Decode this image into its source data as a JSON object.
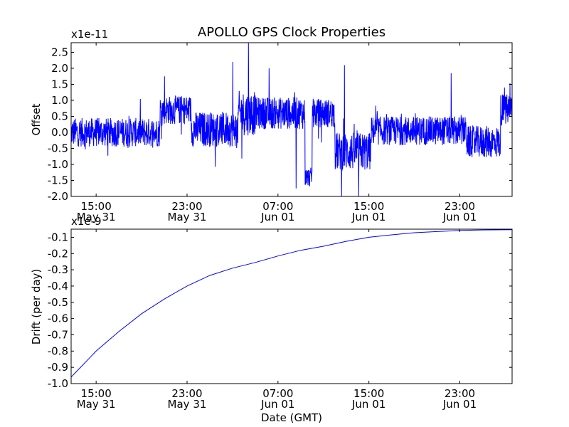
{
  "title": "APOLLO GPS Clock Properties",
  "chart_data": [
    {
      "type": "line",
      "name": "offset",
      "ylabel": "Offset",
      "scale_label": "x1e-11",
      "scale": 1e-11,
      "ylim": [
        -2.0,
        2.8
      ],
      "yticks": [
        -2.0,
        -1.5,
        -1.0,
        -0.5,
        0.0,
        0.5,
        1.0,
        1.5,
        2.0,
        2.5
      ],
      "ytick_labels": [
        "-2.0",
        "-1.5",
        "-1.0",
        "-0.5",
        "0.0",
        "0.5",
        "1.0",
        "1.5",
        "2.0",
        "2.5"
      ],
      "xlim_hours": [
        -2.2,
        36.6
      ],
      "xticks_hours": [
        0,
        8,
        16,
        24,
        32
      ],
      "xtick_labels": [
        [
          "15:00",
          "May 31"
        ],
        [
          "23:00",
          "May 31"
        ],
        [
          "07:00",
          "Jun 01"
        ],
        [
          "15:00",
          "Jun 01"
        ],
        [
          "23:00",
          "Jun 01"
        ]
      ],
      "series": [
        {
          "name": "clock offset",
          "color": "#0000ff",
          "segments": [
            {
              "from_hour": -2.2,
              "to_hour": 5.6,
              "mean": 0.0,
              "noise": 0.45,
              "spikes": []
            },
            {
              "from_hour": 5.6,
              "to_hour": 8.4,
              "mean": 0.7,
              "noise": 0.45,
              "spikes": [
                {
                  "hour": 6.0,
                  "value": 1.75
                }
              ]
            },
            {
              "from_hour": 8.4,
              "to_hour": 12.5,
              "mean": 0.1,
              "noise": 0.55,
              "spikes": [
                {
                  "hour": 12.0,
                  "value": 2.2
                }
              ]
            },
            {
              "from_hour": 12.5,
              "to_hour": 14.0,
              "mean": 0.6,
              "noise": 0.7,
              "spikes": [
                {
                  "hour": 13.4,
                  "value": 2.8
                }
              ]
            },
            {
              "from_hour": 14.0,
              "to_hour": 18.4,
              "mean": 0.6,
              "noise": 0.5,
              "spikes": [
                {
                  "hour": 15.2,
                  "value": 2.0
                },
                {
                  "hour": 17.6,
                  "value": -1.75
                }
              ]
            },
            {
              "from_hour": 18.4,
              "to_hour": 19.0,
              "mean": -1.4,
              "noise": 0.3,
              "spikes": []
            },
            {
              "from_hour": 19.0,
              "to_hour": 21.0,
              "mean": 0.6,
              "noise": 0.45,
              "spikes": []
            },
            {
              "from_hour": 21.0,
              "to_hour": 24.2,
              "mean": -0.6,
              "noise": 0.6,
              "spikes": [
                {
                  "hour": 21.8,
                  "value": 2.1
                },
                {
                  "hour": 21.6,
                  "value": -2.0
                },
                {
                  "hour": 23.1,
                  "value": -2.0
                }
              ]
            },
            {
              "from_hour": 24.2,
              "to_hour": 32.6,
              "mean": 0.05,
              "noise": 0.45,
              "spikes": [
                {
                  "hour": 31.2,
                  "value": 1.85
                }
              ]
            },
            {
              "from_hour": 32.6,
              "to_hour": 35.6,
              "mean": -0.3,
              "noise": 0.5,
              "spikes": []
            },
            {
              "from_hour": 35.6,
              "to_hour": 36.6,
              "mean": 0.7,
              "noise": 0.5,
              "spikes": [
                {
                  "hour": 35.9,
                  "value": 1.4
                }
              ]
            }
          ]
        }
      ]
    },
    {
      "type": "line",
      "name": "drift",
      "ylabel": "Drift (per day)",
      "xlabel": "Date (GMT)",
      "scale_label": "x1e-9",
      "scale": 1e-09,
      "ylim": [
        -1.0,
        -0.05
      ],
      "yticks": [
        -1.0,
        -0.9,
        -0.8,
        -0.7,
        -0.6,
        -0.5,
        -0.4,
        -0.3,
        -0.2,
        -0.1
      ],
      "ytick_labels": [
        "-1.0",
        "-0.9",
        "-0.8",
        "-0.7",
        "-0.6",
        "-0.5",
        "-0.4",
        "-0.3",
        "-0.2",
        "-0.1"
      ],
      "xlim_hours": [
        -2.2,
        36.6
      ],
      "xticks_hours": [
        0,
        8,
        16,
        24,
        32
      ],
      "xtick_labels": [
        [
          "15:00",
          "May 31"
        ],
        [
          "23:00",
          "May 31"
        ],
        [
          "07:00",
          "Jun 01"
        ],
        [
          "15:00",
          "Jun 01"
        ],
        [
          "23:00",
          "Jun 01"
        ]
      ],
      "series": [
        {
          "name": "drift",
          "color": "#0000ff",
          "x_hours": [
            -2.2,
            0,
            2,
            4,
            6,
            8,
            10,
            12,
            14,
            16,
            18,
            20,
            22,
            24,
            26,
            28,
            30,
            32,
            34,
            36.6
          ],
          "values": [
            -0.96,
            -0.8,
            -0.68,
            -0.57,
            -0.48,
            -0.4,
            -0.335,
            -0.29,
            -0.255,
            -0.215,
            -0.18,
            -0.155,
            -0.125,
            -0.1,
            -0.085,
            -0.072,
            -0.065,
            -0.058,
            -0.055,
            -0.053
          ]
        }
      ]
    }
  ]
}
